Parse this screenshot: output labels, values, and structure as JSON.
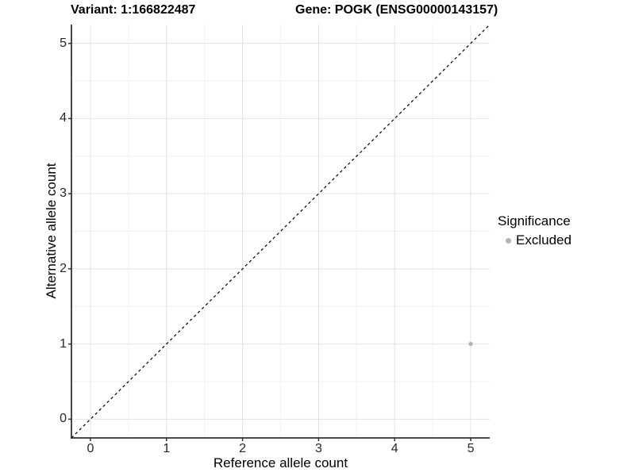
{
  "chart_data": {
    "type": "scatter",
    "title_left": "Variant: 1:166822487",
    "title_right": "Gene: POGK (ENSG00000143157)",
    "xlabel": "Reference allele count",
    "ylabel": "Alternative allele count",
    "xlim": [
      -0.25,
      5.25
    ],
    "ylim": [
      -0.25,
      5.25
    ],
    "x_ticks": [
      0,
      1,
      2,
      3,
      4,
      5
    ],
    "y_ticks": [
      0,
      1,
      2,
      3,
      4,
      5
    ],
    "minor_ticks": [
      0.5,
      1.5,
      2.5,
      3.5,
      4.5
    ],
    "grid": true,
    "points": [
      {
        "x": 5,
        "y": 1,
        "series": "Excluded",
        "color": "#b3b3b3"
      }
    ],
    "reference_line": {
      "type": "identity",
      "slope": 1,
      "intercept": 0,
      "style": "dashed",
      "color": "#000000"
    },
    "legend": {
      "title": "Significance",
      "position": "right",
      "entries": [
        {
          "label": "Excluded",
          "color": "#b3b3b3"
        }
      ]
    },
    "colors": {
      "background": "#ffffff",
      "grid_major": "#e2e2e2",
      "grid_minor": "#f0f0f0",
      "axis": "#333333",
      "tick_text": "#262626",
      "title_text": "#000000"
    }
  }
}
